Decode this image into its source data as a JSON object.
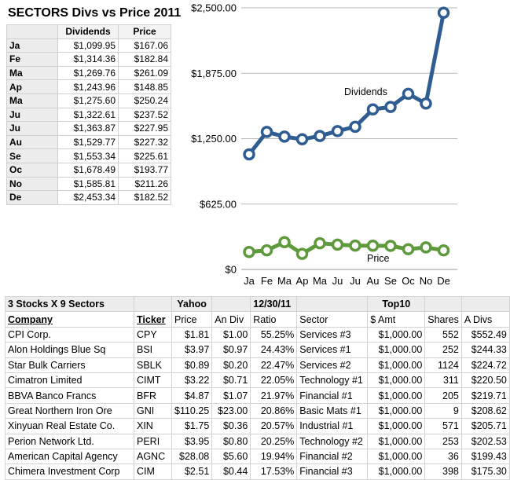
{
  "title": "SECTORS Divs vs Price 2011",
  "monthly_table": {
    "headers": [
      "",
      "Dividends",
      "Price"
    ],
    "rows": [
      {
        "month": "Ja",
        "dividends": "$1,099.95",
        "price": "$167.06"
      },
      {
        "month": "Fe",
        "dividends": "$1,314.36",
        "price": "$182.84"
      },
      {
        "month": "Ma",
        "dividends": "$1,269.76",
        "price": "$261.09"
      },
      {
        "month": "Ap",
        "dividends": "$1,243.96",
        "price": "$148.85"
      },
      {
        "month": "Ma",
        "dividends": "$1,275.60",
        "price": "$250.24"
      },
      {
        "month": "Ju",
        "dividends": "$1,322.61",
        "price": "$237.52"
      },
      {
        "month": "Ju",
        "dividends": "$1,363.87",
        "price": "$227.95"
      },
      {
        "month": "Au",
        "dividends": "$1,529.77",
        "price": "$227.32"
      },
      {
        "month": "Se",
        "dividends": "$1,553.34",
        "price": "$225.61"
      },
      {
        "month": "Oc",
        "dividends": "$1,678.49",
        "price": "$193.77"
      },
      {
        "month": "No",
        "dividends": "$1,585.81",
        "price": "$211.26"
      },
      {
        "month": "De",
        "dividends": "$2,453.34",
        "price": "$182.52"
      }
    ]
  },
  "chart_data": {
    "type": "line",
    "categories": [
      "Ja",
      "Fe",
      "Ma",
      "Ap",
      "Ma",
      "Ju",
      "Ju",
      "Au",
      "Se",
      "Oc",
      "No",
      "De"
    ],
    "series": [
      {
        "name": "Dividends",
        "color": "#2f5d91",
        "values": [
          1099.95,
          1314.36,
          1269.76,
          1243.96,
          1275.6,
          1322.61,
          1363.87,
          1529.77,
          1553.34,
          1678.49,
          1585.81,
          2453.34
        ]
      },
      {
        "name": "Price",
        "color": "#5e9a3c",
        "values": [
          167.06,
          182.84,
          261.09,
          148.85,
          250.24,
          237.52,
          227.95,
          227.32,
          225.61,
          193.77,
          211.26,
          182.52
        ]
      }
    ],
    "yticks": [
      "$0",
      "$625.00",
      "$1,250.00",
      "$1,875.00",
      "$2,500.00"
    ],
    "ylim": [
      0,
      2500
    ],
    "grid": true,
    "legend": "inline labels"
  },
  "bottom_table": {
    "header1": [
      "3 Stocks X 9 Sectors",
      "",
      "Yahoo",
      "",
      "12/30/11",
      "",
      "Top10",
      "",
      ""
    ],
    "header2": [
      "Company",
      "Ticker",
      "Price",
      "An Div",
      "Ratio",
      "Sector",
      "$ Amt",
      "Shares",
      "A Divs"
    ],
    "rows": [
      {
        "company": "CPI Corp.",
        "ticker": "CPY",
        "price": "$1.81",
        "div": "$1.00",
        "ratio": "55.25%",
        "sector": "Services #3",
        "amt": "$1,000.00",
        "shares": "552",
        "adivs": "$552.49"
      },
      {
        "company": "Alon Holdings Blue Sq",
        "ticker": "BSI",
        "price": "$3.97",
        "div": "$0.97",
        "ratio": "24.43%",
        "sector": "Services #1",
        "amt": "$1,000.00",
        "shares": "252",
        "adivs": "$244.33"
      },
      {
        "company": "Star Bulk Carriers",
        "ticker": "SBLK",
        "price": "$0.89",
        "div": "$0.20",
        "ratio": "22.47%",
        "sector": "Services #2",
        "amt": "$1,000.00",
        "shares": "1124",
        "adivs": "$224.72"
      },
      {
        "company": "Cimatron Limited",
        "ticker": "CIMT",
        "price": "$3.22",
        "div": "$0.71",
        "ratio": "22.05%",
        "sector": "Technology #1",
        "amt": "$1,000.00",
        "shares": "311",
        "adivs": "$220.50"
      },
      {
        "company": "BBVA Banco Francs",
        "ticker": "BFR",
        "price": "$4.87",
        "div": "$1.07",
        "ratio": "21.97%",
        "sector": "Financial #1",
        "amt": "$1,000.00",
        "shares": "205",
        "adivs": "$219.71"
      },
      {
        "company": "Great Northern Iron Ore",
        "ticker": "GNI",
        "price": "$110.25",
        "div": "$23.00",
        "ratio": "20.86%",
        "sector": "Basic Mats #1",
        "amt": "$1,000.00",
        "shares": "9",
        "adivs": "$208.62"
      },
      {
        "company": "Xinyuan Real Estate Co.",
        "ticker": "XIN",
        "price": "$1.75",
        "div": "$0.36",
        "ratio": "20.57%",
        "sector": "Industrial #1",
        "amt": "$1,000.00",
        "shares": "571",
        "adivs": "$205.71"
      },
      {
        "company": "Perion Network Ltd.",
        "ticker": "PERI",
        "price": "$3.95",
        "div": "$0.80",
        "ratio": "20.25%",
        "sector": "Technology #2",
        "amt": "$1,000.00",
        "shares": "253",
        "adivs": "$202.53"
      },
      {
        "company": "American Capital Agency",
        "ticker": "AGNC",
        "price": "$28.08",
        "div": "$5.60",
        "ratio": "19.94%",
        "sector": "Financial #2",
        "amt": "$1,000.00",
        "shares": "36",
        "adivs": "$199.43"
      },
      {
        "company": "Chimera Investment Corp",
        "ticker": "CIM",
        "price": "$2.51",
        "div": "$0.44",
        "ratio": "17.53%",
        "sector": "Financial #3",
        "amt": "$1,000.00",
        "shares": "398",
        "adivs": "$175.30"
      }
    ]
  }
}
